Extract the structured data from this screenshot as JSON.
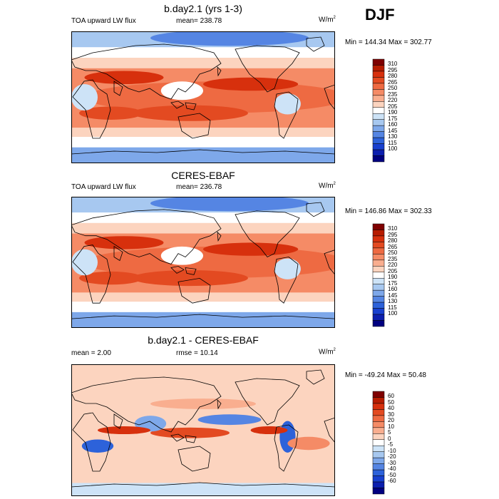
{
  "season": "DJF",
  "panels": [
    {
      "title": "b.day2.1 (yrs 1-3)",
      "left_label": "TOA upward LW flux",
      "center_label": "mean= 238.78",
      "units": "W/m",
      "units_sup": "2",
      "minmax": "Min = 144.34 Max = 302.77",
      "levels": [
        "310",
        "295",
        "280",
        "265",
        "250",
        "235",
        "220",
        "205",
        "190",
        "175",
        "160",
        "145",
        "130",
        "115",
        "100"
      ],
      "colors": [
        "#7f0000",
        "#b71c00",
        "#d7300d",
        "#e34a21",
        "#ee6a42",
        "#f58b66",
        "#f9ae8f",
        "#fcd4bf",
        "#ffffff",
        "#cde3f7",
        "#a7c8f0",
        "#7ea8ea",
        "#5585e3",
        "#2d62da",
        "#1840cf",
        "#0c1fae",
        "#000080"
      ],
      "type": "abs"
    },
    {
      "title": "CERES-EBAF",
      "left_label": "TOA upward LW flux",
      "center_label": "mean= 236.78",
      "units": "W/m",
      "units_sup": "2",
      "minmax": "Min = 146.86 Max = 302.33",
      "levels": [
        "310",
        "295",
        "280",
        "265",
        "250",
        "235",
        "220",
        "205",
        "190",
        "175",
        "160",
        "145",
        "130",
        "115",
        "100"
      ],
      "colors": [
        "#7f0000",
        "#b71c00",
        "#d7300d",
        "#e34a21",
        "#ee6a42",
        "#f58b66",
        "#f9ae8f",
        "#fcd4bf",
        "#ffffff",
        "#cde3f7",
        "#a7c8f0",
        "#7ea8ea",
        "#5585e3",
        "#2d62da",
        "#1840cf",
        "#0c1fae",
        "#000080"
      ],
      "type": "abs"
    },
    {
      "title": "b.day2.1 - CERES-EBAF",
      "left_label": "mean =   2.00",
      "center_label": "rmse =  10.14",
      "units": "W/m",
      "units_sup": "2",
      "minmax": "Min = -49.24 Max =  50.48",
      "levels": [
        "60",
        "50",
        "40",
        "30",
        "20",
        "10",
        "5",
        "0",
        "-5",
        "-10",
        "-20",
        "-30",
        "-40",
        "-50",
        "-60"
      ],
      "colors": [
        "#7f0000",
        "#b71c00",
        "#d7300d",
        "#e34a21",
        "#ee6a42",
        "#f58b66",
        "#f9ae8f",
        "#fcd4bf",
        "#ffffff",
        "#cde3f7",
        "#a7c8f0",
        "#7ea8ea",
        "#5585e3",
        "#2d62da",
        "#1840cf",
        "#0c1fae",
        "#000080"
      ],
      "type": "diff"
    }
  ]
}
